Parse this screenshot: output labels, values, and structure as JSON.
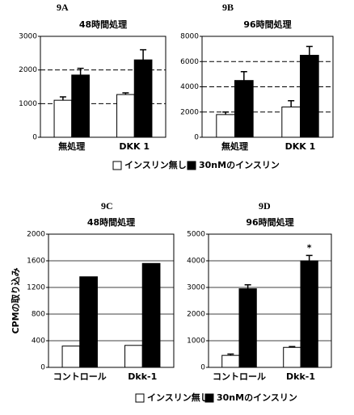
{
  "chart_data": [
    {
      "type": "bar",
      "panel": "9A",
      "title": "48時間処理",
      "categories": [
        "無処理",
        "DKK 1"
      ],
      "series": [
        {
          "name": "インスリン無し",
          "color": "#ffffff",
          "values": [
            1100,
            1270
          ],
          "errors": [
            100,
            50
          ]
        },
        {
          "name": "30nMのインスリン",
          "color": "#000000",
          "values": [
            1850,
            2300
          ],
          "errors": [
            200,
            300
          ]
        }
      ],
      "ylim": [
        0,
        3000
      ],
      "yticks": [
        0,
        1000,
        2000,
        3000
      ],
      "grid": "dashed"
    },
    {
      "type": "bar",
      "panel": "9B",
      "title": "96時間処理",
      "categories": [
        "無処理",
        "DKK 1"
      ],
      "series": [
        {
          "color": "#ffffff",
          "values": [
            1800,
            2400
          ],
          "errors": [
            200,
            500
          ]
        },
        {
          "color": "#000000",
          "values": [
            4500,
            6500
          ],
          "errors": [
            700,
            700
          ]
        }
      ],
      "ylim": [
        0,
        8000
      ],
      "yticks": [
        0,
        2000,
        4000,
        6000,
        8000
      ],
      "grid": "dashed"
    },
    {
      "type": "bar",
      "panel": "9C",
      "title": "48時間処理",
      "ylabel": "CPMの取り込み",
      "categories": [
        "コントロール",
        "Dkk-1"
      ],
      "series": [
        {
          "name": "インスリン無し",
          "color": "#ffffff",
          "values": [
            320,
            330
          ]
        },
        {
          "name": "30nMのインスリン",
          "color": "#000000",
          "values": [
            1360,
            1560
          ]
        }
      ],
      "ylim": [
        0,
        2000
      ],
      "yticks": [
        0,
        400,
        800,
        1200,
        1600,
        2000
      ],
      "grid": "solid"
    },
    {
      "type": "bar",
      "panel": "9D",
      "title": "96時間処理",
      "categories": [
        "コントロール",
        "Dkk-1"
      ],
      "series": [
        {
          "color": "#ffffff",
          "values": [
            450,
            750
          ],
          "errors": [
            50,
            30
          ]
        },
        {
          "color": "#000000",
          "values": [
            2950,
            4000
          ],
          "errors": [
            150,
            200
          ]
        }
      ],
      "ylim": [
        0,
        5000
      ],
      "yticks": [
        0,
        1000,
        2000,
        3000,
        4000,
        5000
      ],
      "grid": "solid",
      "annotation": "*"
    }
  ]
}
